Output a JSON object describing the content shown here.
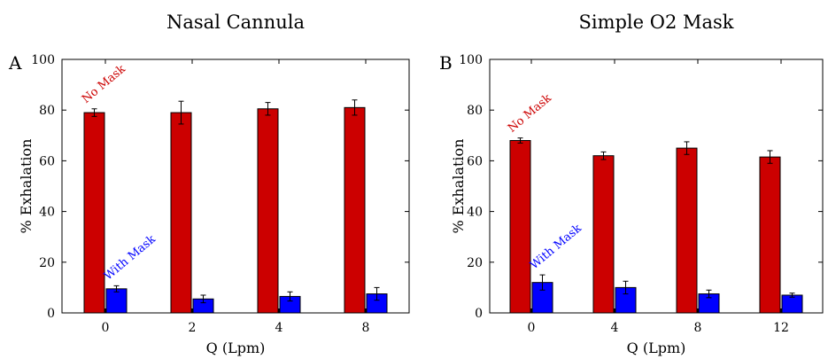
{
  "chart_data": [
    {
      "type": "bar",
      "panel_label": "A",
      "title": "Nasal Cannula",
      "xlabel": "Q (Lpm)",
      "ylabel": "% Exhalation",
      "categories": [
        "0",
        "2",
        "4",
        "8"
      ],
      "ylim": [
        0,
        100
      ],
      "yticks": [
        0,
        20,
        40,
        60,
        80,
        100
      ],
      "grid": false,
      "series": [
        {
          "name": "No Mask",
          "color": "#cc0000",
          "values": [
            79,
            79,
            80.5,
            81
          ],
          "errors": [
            1.5,
            4.5,
            2.5,
            3
          ]
        },
        {
          "name": "With Mask",
          "color": "#0000ff",
          "values": [
            9.5,
            5.5,
            6.5,
            7.5
          ],
          "errors": [
            1.2,
            1.5,
            1.8,
            2.5
          ]
        }
      ],
      "annotations": [
        {
          "text": "No Mask",
          "color": "#cc0000",
          "series": 0,
          "category": 0
        },
        {
          "text": "With Mask",
          "color": "#0000ff",
          "series": 1,
          "category": 0
        }
      ]
    },
    {
      "type": "bar",
      "panel_label": "B",
      "title": "Simple O2 Mask",
      "xlabel": "Q (Lpm)",
      "ylabel": "% Exhalation",
      "categories": [
        "0",
        "4",
        "8",
        "12"
      ],
      "ylim": [
        0,
        100
      ],
      "yticks": [
        0,
        20,
        40,
        60,
        80,
        100
      ],
      "grid": false,
      "series": [
        {
          "name": "No Mask",
          "color": "#cc0000",
          "values": [
            68,
            62,
            65,
            61.5
          ],
          "errors": [
            1,
            1.5,
            2.5,
            2.5
          ]
        },
        {
          "name": "With Mask",
          "color": "#0000ff",
          "values": [
            12,
            10,
            7.5,
            7
          ],
          "errors": [
            3,
            2.5,
            1.5,
            0.8
          ]
        }
      ],
      "annotations": [
        {
          "text": "No Mask",
          "color": "#cc0000",
          "series": 0,
          "category": 0
        },
        {
          "text": "With Mask",
          "color": "#0000ff",
          "series": 1,
          "category": 0
        }
      ]
    }
  ]
}
